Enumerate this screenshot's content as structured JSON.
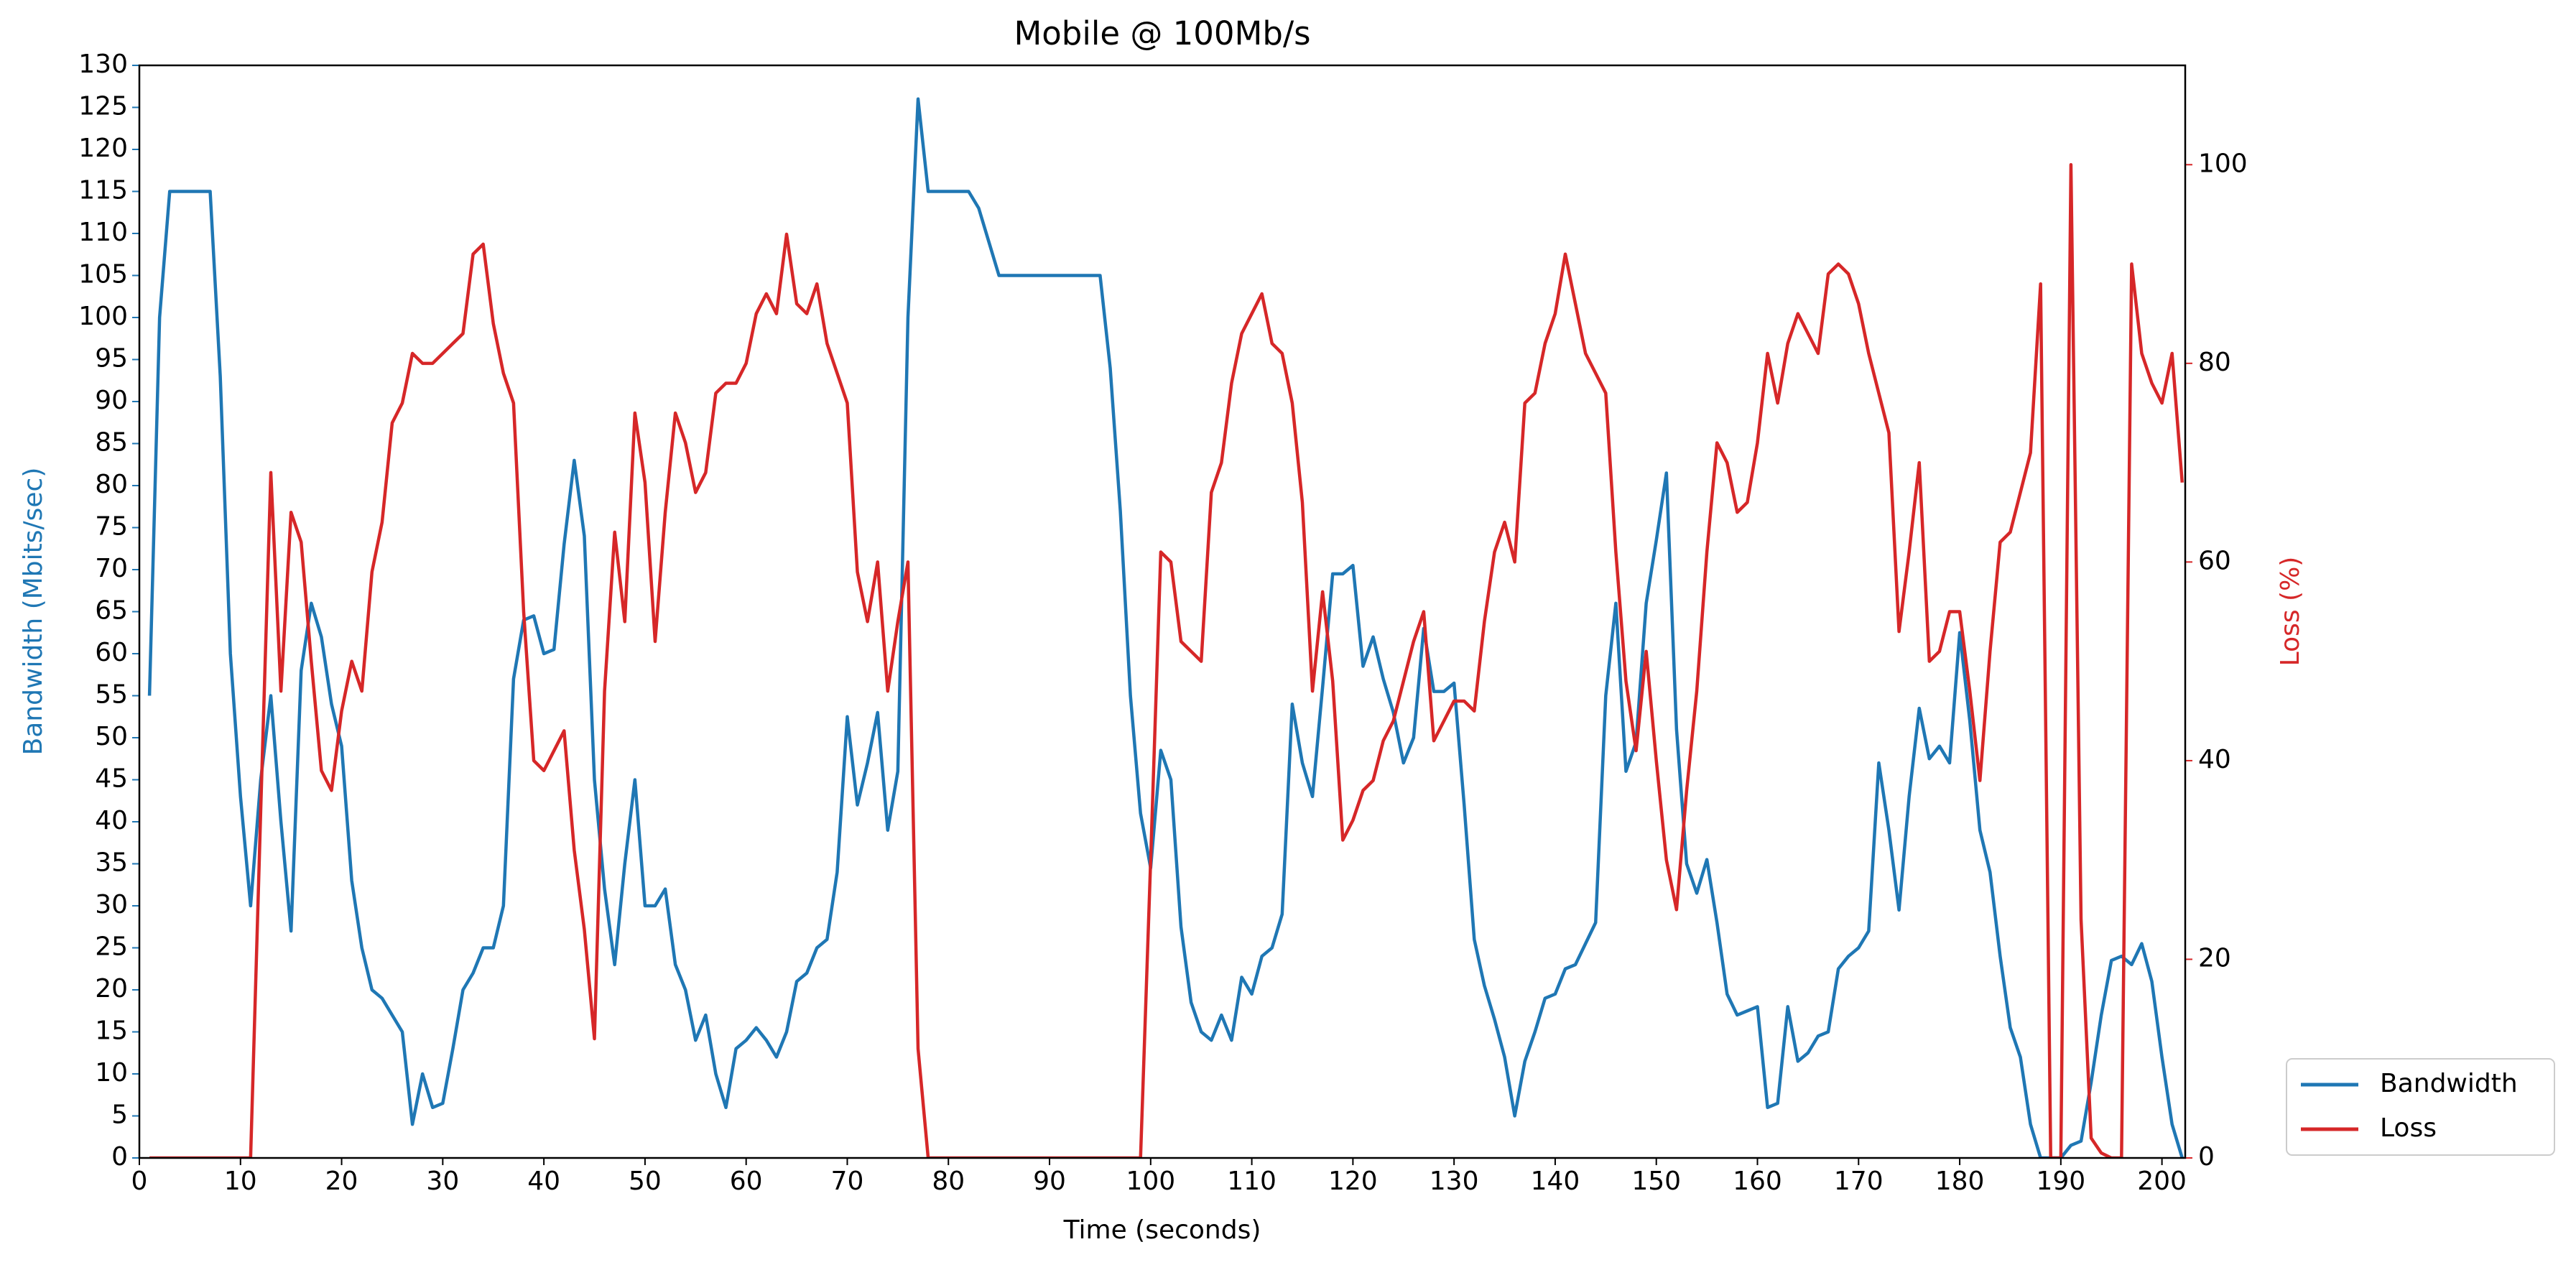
{
  "chart_data": {
    "type": "line",
    "title": "Mobile @ 100Mb/s",
    "x_label": "Time (seconds)",
    "y_label": "Bandwidth (Mbits/sec)",
    "y2_label": "Loss (%)",
    "x": [
      1,
      2,
      3,
      4,
      5,
      6,
      7,
      8,
      9,
      10,
      11,
      12,
      13,
      14,
      15,
      16,
      17,
      18,
      19,
      20,
      21,
      22,
      23,
      24,
      25,
      26,
      27,
      28,
      29,
      30,
      31,
      32,
      33,
      34,
      35,
      36,
      37,
      38,
      39,
      40,
      41,
      42,
      43,
      44,
      45,
      46,
      47,
      48,
      49,
      50,
      51,
      52,
      53,
      54,
      55,
      56,
      57,
      58,
      59,
      60,
      61,
      62,
      63,
      64,
      65,
      66,
      67,
      68,
      69,
      70,
      71,
      72,
      73,
      74,
      75,
      76,
      77,
      78,
      79,
      80,
      81,
      82,
      83,
      84,
      85,
      86,
      87,
      88,
      89,
      90,
      91,
      92,
      93,
      94,
      95,
      96,
      97,
      98,
      99,
      100,
      101,
      102,
      103,
      104,
      105,
      106,
      107,
      108,
      109,
      110,
      111,
      112,
      113,
      114,
      115,
      116,
      117,
      118,
      119,
      120,
      121,
      122,
      123,
      124,
      125,
      126,
      127,
      128,
      129,
      130,
      131,
      132,
      133,
      134,
      135,
      136,
      137,
      138,
      139,
      140,
      141,
      142,
      143,
      144,
      145,
      146,
      147,
      148,
      149,
      150,
      151,
      152,
      153,
      154,
      155,
      156,
      157,
      158,
      159,
      160,
      161,
      162,
      163,
      164,
      165,
      166,
      167,
      168,
      169,
      170,
      171,
      172,
      173,
      174,
      175,
      176,
      177,
      178,
      179,
      180,
      181,
      182,
      183,
      184,
      185,
      186,
      187,
      188,
      189,
      190,
      191,
      192,
      193,
      194,
      195,
      196,
      197,
      198,
      199,
      200,
      201,
      202
    ],
    "series": [
      {
        "name": "Bandwidth",
        "color": "#1f77b4",
        "values": [
          55,
          100,
          115,
          115,
          115,
          115,
          115,
          93,
          60,
          43,
          30,
          45,
          55,
          40,
          27,
          58,
          66,
          62,
          54,
          49,
          33,
          25,
          20,
          19,
          17,
          15,
          4,
          10,
          6,
          6.5,
          13,
          20,
          22,
          25,
          25,
          30,
          57,
          64,
          64.5,
          60,
          60.5,
          73,
          83,
          74,
          45,
          32,
          23,
          35,
          45,
          30,
          30,
          32,
          23,
          20,
          14,
          17,
          10,
          6,
          13,
          14,
          15.5,
          14,
          12,
          15,
          21,
          22,
          25,
          26,
          34,
          52.5,
          42,
          47,
          53,
          39,
          46,
          100,
          126,
          115,
          115,
          115,
          115,
          115,
          113,
          109,
          105,
          105,
          105,
          105,
          105,
          105,
          105,
          105,
          105,
          105,
          105,
          94,
          77,
          55,
          41,
          34.5,
          48.5,
          45,
          27.5,
          18.5,
          15,
          14,
          17,
          14,
          21.5,
          19.5,
          24,
          25,
          29,
          54,
          47,
          43,
          56,
          69.5,
          69.5,
          70.5,
          58.5,
          62,
          57,
          53,
          47,
          50,
          63,
          55.5,
          55.5,
          56.5,
          42,
          26,
          20.5,
          16.5,
          12,
          5,
          11.5,
          15,
          19,
          19.5,
          22.5,
          23,
          25.5,
          28,
          55,
          66,
          46,
          49.5,
          66,
          73.5,
          81.5,
          51,
          35,
          31.5,
          35.5,
          28,
          19.5,
          17,
          17.5,
          18,
          6,
          6.5,
          18,
          11.5,
          12.5,
          14.5,
          15,
          22.5,
          24,
          25,
          27,
          47,
          39,
          29.5,
          43,
          53.5,
          47.5,
          49,
          47,
          62.5,
          52,
          39,
          34,
          24,
          15.5,
          12,
          4,
          0,
          0,
          0,
          1.5,
          2,
          9,
          17,
          23.5,
          24,
          23,
          25.5,
          21,
          12,
          4,
          0
        ]
      },
      {
        "name": "Loss",
        "color": "#d62728",
        "axis": "y2",
        "values": [
          0,
          0,
          0,
          0,
          0,
          0,
          0,
          0,
          0,
          0,
          0,
          35,
          69,
          47,
          65,
          62,
          50,
          39,
          37,
          45,
          50,
          47,
          59,
          64,
          74,
          76,
          81,
          80,
          80,
          81,
          82,
          83,
          91,
          92,
          84,
          79,
          76,
          55,
          40,
          39,
          41,
          43,
          31,
          23,
          12,
          47,
          63,
          54,
          75,
          68,
          52,
          65,
          75,
          72,
          67,
          69,
          77,
          78,
          78,
          80,
          85,
          87,
          85,
          93,
          86,
          85,
          88,
          82,
          79,
          76,
          59,
          54,
          60,
          47,
          54,
          60,
          11,
          0,
          0,
          0,
          0,
          0,
          0,
          0,
          0,
          0,
          0,
          0,
          0,
          0,
          0,
          0,
          0,
          0,
          0,
          0,
          0,
          0,
          0,
          30,
          61,
          60,
          52,
          51,
          50,
          67,
          70,
          78,
          83,
          85,
          87,
          82,
          81,
          76,
          66,
          47,
          57,
          48,
          32,
          34,
          37,
          38,
          42,
          44,
          48,
          52,
          55,
          42,
          44,
          46,
          46,
          45,
          54,
          61,
          64,
          60,
          76,
          77,
          82,
          85,
          91,
          86,
          81,
          79,
          77,
          61,
          48,
          41,
          51,
          40,
          30,
          25,
          37,
          47,
          61,
          72,
          70,
          65,
          66,
          72,
          81,
          76,
          82,
          85,
          83,
          81,
          89,
          90,
          89,
          86,
          81,
          77,
          73,
          53,
          61,
          70,
          50,
          51,
          55,
          55,
          47,
          38,
          51,
          62,
          63,
          67,
          71,
          88,
          0,
          0,
          100,
          24,
          2,
          0.5,
          0,
          0,
          90,
          81,
          78,
          76,
          81,
          68
        ]
      }
    ],
    "xlim": [
      0,
      202.3
    ],
    "xticks": [
      0,
      10,
      20,
      30,
      40,
      50,
      60,
      70,
      80,
      90,
      100,
      110,
      120,
      130,
      140,
      150,
      160,
      170,
      180,
      190,
      200
    ],
    "ylim": [
      0,
      130
    ],
    "yticks": [
      0,
      5,
      10,
      15,
      20,
      25,
      30,
      35,
      40,
      45,
      50,
      55,
      60,
      65,
      70,
      75,
      80,
      85,
      90,
      95,
      100,
      105,
      110,
      115,
      120,
      125,
      130
    ],
    "y2lim": [
      0,
      110
    ],
    "y2ticks": [
      0,
      20,
      40,
      60,
      80,
      100
    ],
    "grid": false,
    "legend": "lower-right-outside"
  }
}
